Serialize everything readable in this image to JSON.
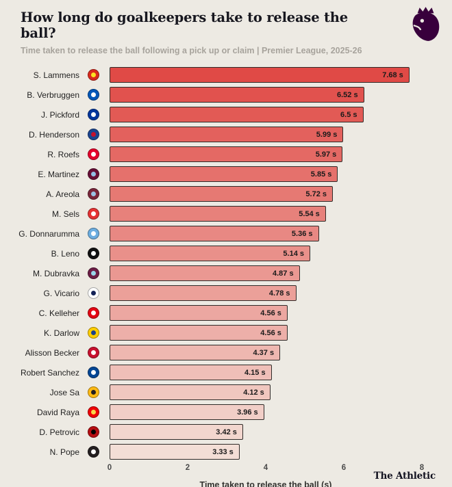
{
  "header": {
    "title": "How long do goalkeepers take to release the ball?",
    "subtitle": "Time taken to release the ball following a pick up or claim | Premier League, 2025-26"
  },
  "footer": {
    "brand": "The Athletic"
  },
  "brand_colors": {
    "premier_league_purple": "#38003c",
    "background": "#edeae3"
  },
  "chart_data": {
    "type": "bar",
    "orientation": "horizontal",
    "title": "How long do goalkeepers take to release the ball?",
    "subtitle": "Time taken to release the ball following a pick up or claim | Premier League, 2025-26",
    "xlabel": "Time taken to release the ball (s)",
    "xlim": [
      0,
      8.2
    ],
    "xticks": [
      0,
      2,
      4,
      6,
      8
    ],
    "grid": false,
    "legend": "none",
    "bar_colors": {
      "dark": "#e04a46",
      "light": "#f3ded6"
    },
    "rows": [
      {
        "name": "S. Lammens",
        "club": "manchester-united",
        "value": 7.68,
        "display": "7.68 s",
        "crest": [
          "#da291c",
          "#fbe122"
        ]
      },
      {
        "name": "B. Verbruggen",
        "club": "brighton",
        "value": 6.52,
        "display": "6.52 s",
        "crest": [
          "#0057b8",
          "#ffffff"
        ]
      },
      {
        "name": "J. Pickford",
        "club": "everton",
        "value": 6.5,
        "display": "6.5 s",
        "crest": [
          "#00369c",
          "#ffffff"
        ]
      },
      {
        "name": "D. Henderson",
        "club": "crystal-palace",
        "value": 5.99,
        "display": "5.99 s",
        "crest": [
          "#1b458f",
          "#c4122e"
        ]
      },
      {
        "name": "R. Roefs",
        "club": "sunderland",
        "value": 5.97,
        "display": "5.97 s",
        "crest": [
          "#e4002b",
          "#ffffff"
        ]
      },
      {
        "name": "E. Martinez",
        "club": "aston-villa",
        "value": 5.85,
        "display": "5.85 s",
        "crest": [
          "#670e36",
          "#94bee5"
        ]
      },
      {
        "name": "A. Areola",
        "club": "west-ham",
        "value": 5.72,
        "display": "5.72 s",
        "crest": [
          "#7a263a",
          "#9cc3e5"
        ]
      },
      {
        "name": "M. Sels",
        "club": "nottingham-forest",
        "value": 5.54,
        "display": "5.54 s",
        "crest": [
          "#e53233",
          "#ffffff"
        ]
      },
      {
        "name": "G. Donnarumma",
        "club": "manchester-city",
        "value": 5.36,
        "display": "5.36 s",
        "crest": [
          "#6caddf",
          "#ffffff"
        ]
      },
      {
        "name": "B. Leno",
        "club": "fulham",
        "value": 5.14,
        "display": "5.14 s",
        "crest": [
          "#111111",
          "#ffffff"
        ]
      },
      {
        "name": "M. Dubravka",
        "club": "burnley",
        "value": 4.87,
        "display": "4.87 s",
        "crest": [
          "#6c1d45",
          "#99d6ea"
        ]
      },
      {
        "name": "G. Vicario",
        "club": "tottenham",
        "value": 4.78,
        "display": "4.78 s",
        "crest": [
          "#ffffff",
          "#132257"
        ]
      },
      {
        "name": "C. Kelleher",
        "club": "brentford",
        "value": 4.56,
        "display": "4.56 s",
        "crest": [
          "#e30613",
          "#ffffff"
        ]
      },
      {
        "name": "K. Darlow",
        "club": "leeds",
        "value": 4.56,
        "display": "4.56 s",
        "crest": [
          "#ffcd00",
          "#1d428a"
        ]
      },
      {
        "name": "Alisson Becker",
        "club": "liverpool",
        "value": 4.37,
        "display": "4.37 s",
        "crest": [
          "#c8102e",
          "#ffffff"
        ]
      },
      {
        "name": "Robert Sanchez",
        "club": "chelsea",
        "value": 4.15,
        "display": "4.15 s",
        "crest": [
          "#034694",
          "#ffffff"
        ]
      },
      {
        "name": "Jose Sa",
        "club": "wolves",
        "value": 4.12,
        "display": "4.12 s",
        "crest": [
          "#fdb913",
          "#231f20"
        ]
      },
      {
        "name": "David Raya",
        "club": "arsenal",
        "value": 3.96,
        "display": "3.96 s",
        "crest": [
          "#ef0107",
          "#f8d74a"
        ]
      },
      {
        "name": "D. Petrovic",
        "club": "bournemouth",
        "value": 3.42,
        "display": "3.42 s",
        "crest": [
          "#b50e12",
          "#000000"
        ]
      },
      {
        "name": "N. Pope",
        "club": "newcastle",
        "value": 3.33,
        "display": "3.33 s",
        "crest": [
          "#241f20",
          "#ffffff"
        ]
      }
    ]
  }
}
